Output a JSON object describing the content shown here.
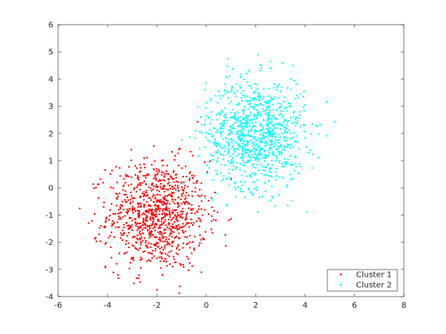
{
  "chart_data": {
    "type": "scatter",
    "xlim": [
      -6,
      8
    ],
    "ylim": [
      -4,
      6
    ],
    "x_ticks": [
      -6,
      -4,
      -2,
      0,
      2,
      4,
      6,
      8
    ],
    "y_ticks": [
      -4,
      -3,
      -2,
      -1,
      0,
      1,
      2,
      3,
      4,
      5,
      6
    ],
    "grid": false,
    "legend_position": "bottom-right",
    "series": [
      {
        "name": "Cluster 1",
        "color": "#ff0000",
        "marker": "dot",
        "center": [
          -2,
          -1
        ],
        "std": [
          1,
          1
        ],
        "count": 1000
      },
      {
        "name": "Cluster 2",
        "color": "#00ffff",
        "marker": "dot",
        "center": [
          2,
          2
        ],
        "std": [
          1,
          1
        ],
        "count": 1000
      }
    ]
  }
}
